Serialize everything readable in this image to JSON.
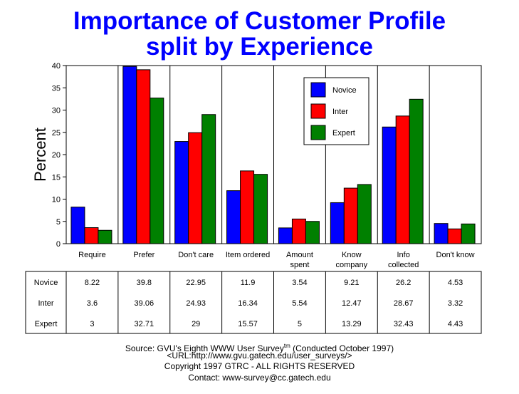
{
  "chart_data": {
    "type": "bar",
    "title": "Importance of Customer Profile",
    "subtitle": "split by Experience",
    "ylabel": "Percent",
    "xlabel": "",
    "ylim": [
      0,
      40
    ],
    "yticks": [
      0,
      5,
      10,
      15,
      20,
      25,
      30,
      35,
      40
    ],
    "grid": false,
    "legend_position": "top-right",
    "categories": [
      [
        "Require"
      ],
      [
        "Prefer"
      ],
      [
        "Don't care"
      ],
      [
        "Item ordered"
      ],
      [
        "Amount",
        "spent"
      ],
      [
        "Know",
        "company"
      ],
      [
        "Info",
        "collected"
      ],
      [
        "Don't know"
      ]
    ],
    "series": [
      {
        "name": "Novice",
        "color": "#0000ff",
        "values": [
          8.22,
          39.8,
          22.95,
          11.9,
          3.54,
          9.21,
          26.2,
          4.53
        ]
      },
      {
        "name": "Inter",
        "color": "#ff0000",
        "values": [
          3.6,
          39.06,
          24.93,
          16.34,
          5.54,
          12.47,
          28.67,
          3.32
        ]
      },
      {
        "name": "Expert",
        "color": "#008000",
        "values": [
          3,
          32.71,
          29,
          15.57,
          5,
          13.29,
          32.43,
          4.43
        ]
      }
    ]
  },
  "footer": {
    "source": "Source: GVU's Eighth WWW User Survey",
    "tm": "tm",
    "conducted": " (Conducted October 1997)",
    "url": "<URL:http://www.gvu.gatech.edu/user_surveys/>",
    "copyright": "Copyright 1997 GTRC - ALL RIGHTS RESERVED",
    "contact": "Contact: www-survey@cc.gatech.edu"
  }
}
